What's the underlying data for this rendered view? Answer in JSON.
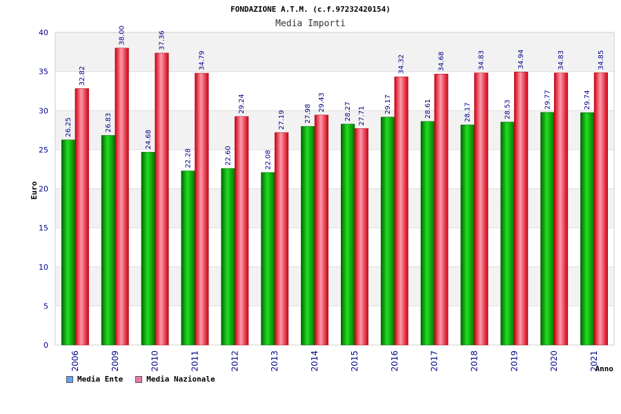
{
  "chart_data": {
    "type": "bar",
    "title": "FONDAZIONE A.T.M. (c.f.97232420154)",
    "subtitle": "Media Importi",
    "ylabel": "Euro",
    "xlabel": "Anno",
    "ylim": [
      0,
      40
    ],
    "yticks": [
      "0",
      "5",
      "10",
      "15",
      "20",
      "25",
      "30",
      "35",
      "40"
    ],
    "categories": [
      "2006",
      "2009",
      "2010",
      "2011",
      "2012",
      "2013",
      "2014",
      "2015",
      "2016",
      "2017",
      "2018",
      "2019",
      "2020",
      "2021"
    ],
    "series": [
      {
        "name": "Media Ente",
        "color": "#00b000",
        "values": [
          26.25,
          26.83,
          24.68,
          22.28,
          22.6,
          22.08,
          27.98,
          28.27,
          29.17,
          28.61,
          28.17,
          28.53,
          29.77,
          29.74
        ],
        "labels": [
          "26.25",
          "26.83",
          "24.68",
          "22.28",
          "22.60",
          "22.08",
          "27.98",
          "28.27",
          "29.17",
          "28.61",
          "28.17",
          "28.53",
          "29.77",
          "29.74"
        ]
      },
      {
        "name": "Media Nazionale",
        "color": "#ee1122",
        "values": [
          32.82,
          38.0,
          37.36,
          34.79,
          29.24,
          27.19,
          29.43,
          27.71,
          34.32,
          34.68,
          34.83,
          34.94,
          34.83,
          34.85
        ],
        "labels": [
          "32.82",
          "38.00",
          "37.36",
          "34.79",
          "29.24",
          "27.19",
          "29.43",
          "27.71",
          "34.32",
          "34.68",
          "34.83",
          "34.94",
          "34.83",
          "34.85"
        ]
      }
    ],
    "legend": {
      "position": "bottom-left",
      "items": [
        {
          "label": "Media Ente",
          "color": "#66a3ee"
        },
        {
          "label": "Media Nazionale",
          "color": "#e87aa8"
        }
      ]
    },
    "grid": true
  }
}
